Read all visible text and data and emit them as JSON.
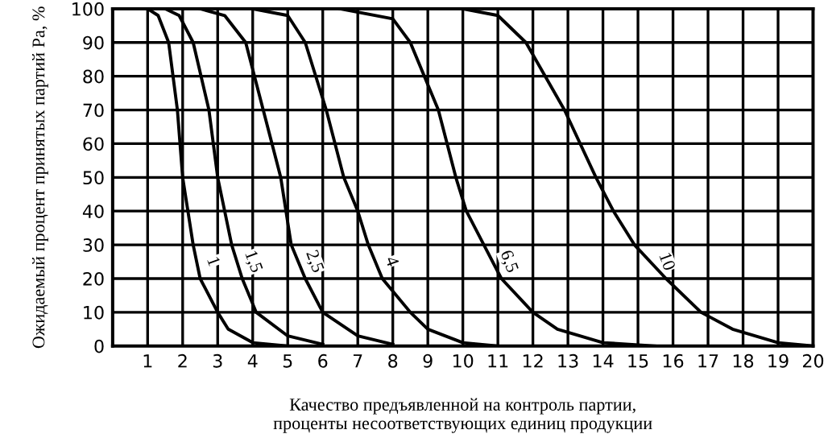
{
  "chart_data": {
    "type": "line",
    "xlabel": "Качество предъявленной на контроль партии,\nпроценты несоответствующих единиц продукции",
    "ylabel": "Ожидаемый процент принятых партий Pa, %",
    "xlim": [
      0,
      20
    ],
    "ylim": [
      0,
      100
    ],
    "xticks": [
      {
        "value": 0,
        "label": null
      },
      1,
      2,
      3,
      4,
      5,
      6,
      7,
      8,
      9,
      10,
      11,
      12,
      13,
      14,
      15,
      16,
      17,
      18,
      19,
      20
    ],
    "yticks": [
      0,
      10,
      20,
      30,
      40,
      50,
      60,
      70,
      80,
      90,
      100
    ],
    "grid": true,
    "marker": "none",
    "line_style": "solid",
    "series": [
      {
        "name": "1",
        "color": "#000000",
        "x": [
          1,
          1.3,
          1.6,
          1.85,
          2.0,
          2.3,
          2.5,
          3.0,
          3.3,
          4.0,
          5.0
        ],
        "values": [
          100,
          98,
          90,
          70,
          50,
          30,
          20,
          10,
          5,
          1,
          0
        ]
      },
      {
        "name": "1,5",
        "color": "#000000",
        "x": [
          1.5,
          1.9,
          2.3,
          2.75,
          3.0,
          3.4,
          3.7,
          4.1,
          5.0,
          6.0
        ],
        "values": [
          100,
          98,
          90,
          70,
          50,
          30,
          20,
          10,
          3,
          0.5
        ]
      },
      {
        "name": "2,5",
        "color": "#000000",
        "x": [
          2.5,
          3.2,
          3.8,
          4.3,
          4.8,
          5.1,
          5.5,
          6.0,
          7.0,
          8.0
        ],
        "values": [
          100,
          98,
          90,
          70,
          50,
          30,
          20,
          10,
          3,
          0.5
        ]
      },
      {
        "name": "4",
        "color": "#000000",
        "x": [
          4,
          5,
          5.5,
          6.1,
          6.6,
          7.0,
          7.3,
          7.7,
          8.5,
          9.0,
          10.0,
          11.0
        ],
        "values": [
          100,
          98,
          90,
          70,
          50,
          40,
          30,
          20,
          10,
          5,
          1,
          0
        ]
      },
      {
        "name": "6,5",
        "color": "#000000",
        "x": [
          6.5,
          8.0,
          8.5,
          9.3,
          9.8,
          10.1,
          10.6,
          11.1,
          12.0,
          12.7,
          14.0,
          15.5
        ],
        "values": [
          100,
          97,
          90,
          70,
          50,
          40,
          30,
          20,
          10,
          5,
          1,
          0
        ]
      },
      {
        "name": "10",
        "color": "#000000",
        "x": [
          10,
          11,
          11.8,
          12.9,
          13.8,
          14.3,
          14.9,
          15.8,
          16.8,
          17.7,
          19.0,
          20.0
        ],
        "values": [
          100,
          98,
          90,
          70,
          50,
          40,
          30,
          20,
          10,
          5,
          1,
          0
        ]
      }
    ]
  }
}
